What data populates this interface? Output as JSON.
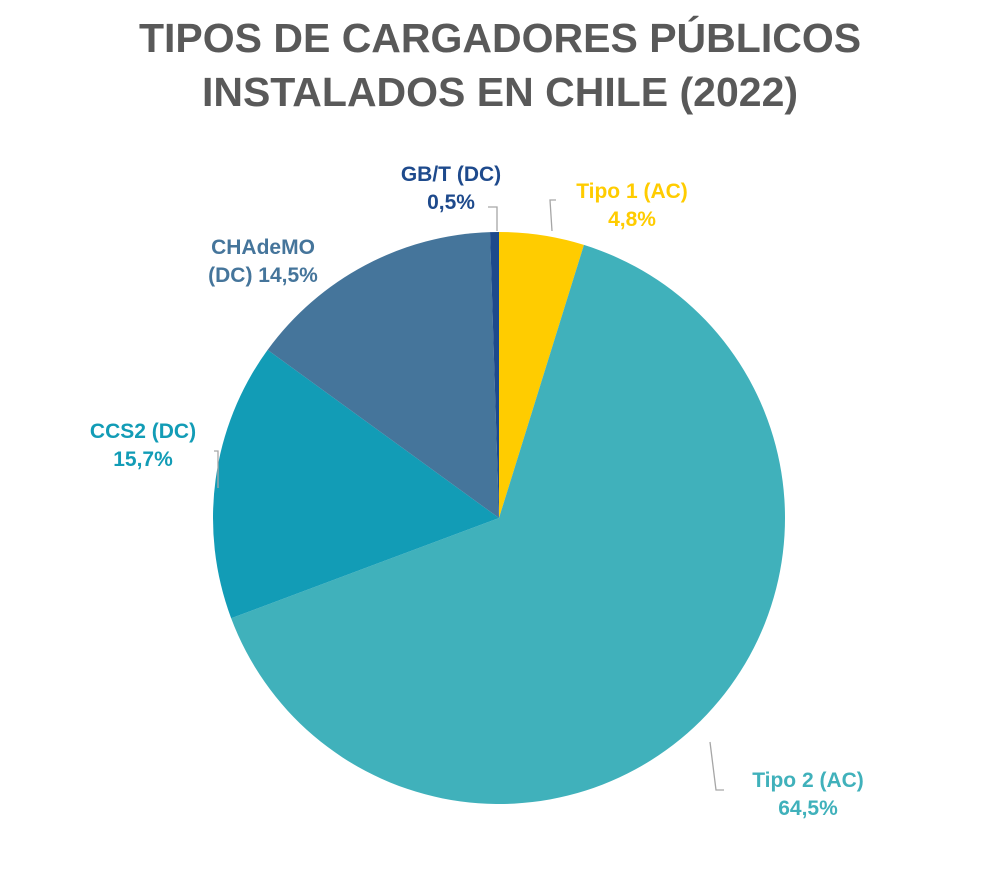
{
  "chart_data": {
    "type": "pie",
    "title": [
      "TIPOS DE CARGADORES PÚBLICOS",
      "INSTALADOS EN CHILE (2022)"
    ],
    "unit": "%",
    "slices": [
      {
        "name": "Tipo 1 (AC)",
        "value": 4.8,
        "label": [
          "Tipo 1 (AC)",
          "4,8%"
        ],
        "color": "#FFCC00"
      },
      {
        "name": "Tipo 2 (AC)",
        "value": 64.5,
        "label": [
          "Tipo 2 (AC)",
          "64,5%"
        ],
        "color": "#40B1BB"
      },
      {
        "name": "CCS2 (DC)",
        "value": 15.7,
        "label": [
          "CCS2 (DC)",
          "15,7%"
        ],
        "color": "#129CB6"
      },
      {
        "name": "CHAdeMO (DC)",
        "value": 14.5,
        "label": [
          "CHAdeMO",
          "(DC) 14,5%"
        ],
        "color": "#45759B"
      },
      {
        "name": "GB/T (DC)",
        "value": 0.5,
        "label": [
          "GB/T (DC)",
          "0,5%"
        ],
        "color": "#1E4A8C"
      }
    ]
  }
}
